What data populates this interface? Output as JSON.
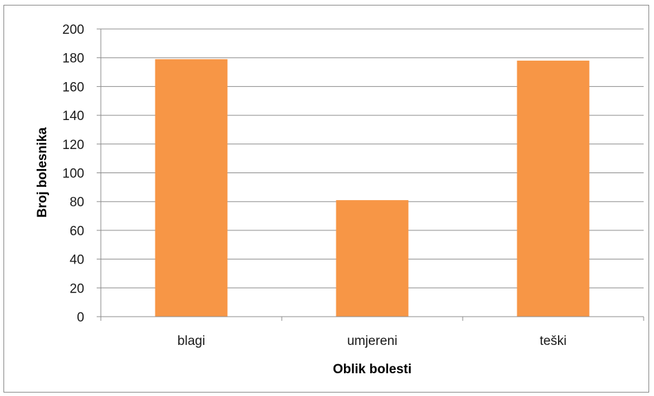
{
  "chart_data": {
    "type": "bar",
    "categories": [
      "blagi",
      "umjereni",
      "teški"
    ],
    "values": [
      179,
      81,
      178
    ],
    "xlabel": "Oblik bolesti",
    "ylabel": "Broj bolesnika",
    "ylim": [
      0,
      200
    ],
    "yticks": [
      0,
      20,
      40,
      60,
      80,
      100,
      120,
      140,
      160,
      180,
      200
    ],
    "grid": true,
    "legend": "none",
    "bar_color": "#f79646",
    "grid_color": "#8c8c8c",
    "axis_color": "#8c8c8c"
  }
}
